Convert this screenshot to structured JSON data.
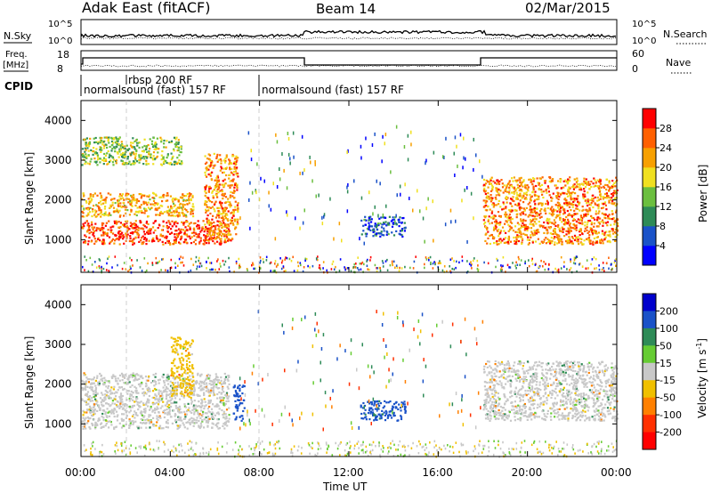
{
  "header": {
    "station": "Adak East (fitACF)",
    "beam": "Beam 14",
    "date": "02/Mar/2015"
  },
  "top_panels": {
    "nsky_label": "N.Sky",
    "nsearch_label": "N.Search",
    "nsky_ticks": [
      "10^5",
      "10^0"
    ],
    "nsearch_ticks": [
      "10^5",
      "10^0"
    ],
    "freq_label": "Freq.",
    "freq_unit": "[MHz]",
    "freq_ticks": [
      "18",
      "8"
    ],
    "nave_label": "Nave",
    "nave_ticks": [
      "60",
      "0"
    ],
    "cpid_label": "CPID",
    "cpid_entries": [
      {
        "text": "rbsp 200 RF",
        "start_hour": 2.0
      },
      {
        "text": "normalsound (fast) 157 RF",
        "start_hour": 0.0
      },
      {
        "text": "normalsound (fast) 157 RF",
        "start_hour": 8.0
      }
    ]
  },
  "axes": {
    "ylabel": "Slant Range [km]",
    "xlabel": "Time UT",
    "yticks": [
      "1000",
      "2000",
      "3000",
      "4000"
    ],
    "xticks": [
      "00:00",
      "04:00",
      "08:00",
      "12:00",
      "16:00",
      "20:00",
      "00:00"
    ]
  },
  "colorbars": {
    "power": {
      "label": "Power [dB]",
      "ticks": [
        "4",
        "8",
        "12",
        "16",
        "20",
        "24",
        "28"
      ],
      "colors": [
        "#0000ff",
        "#1a52c8",
        "#2e8b57",
        "#6bbf3f",
        "#f0e020",
        "#f7a000",
        "#ff6000",
        "#ff0000"
      ]
    },
    "velocity": {
      "label": "Velocity [m s",
      "label_sup": "-1",
      "label_end": "]",
      "ticks": [
        "200",
        "100",
        "50",
        "15",
        "-15",
        "-50",
        "-100",
        "-200"
      ],
      "colors": [
        "#0000cc",
        "#1a52c8",
        "#2e8b57",
        "#66cc33",
        "#c8c8c8",
        "#f0c000",
        "#ff8000",
        "#ff3000",
        "#ff0000"
      ]
    }
  },
  "chart_data": [
    {
      "type": "heatmap",
      "title": "Adak East (fitACF) Beam 14 02/Mar/2015 - Power",
      "xlabel": "Time UT",
      "ylabel": "Slant Range [km]",
      "xlim_hours": [
        0,
        24
      ],
      "ylim": [
        180,
        4500
      ],
      "colorbar": "Power [dB]",
      "colorbar_range": [
        0,
        30
      ],
      "regions": [
        {
          "t": [
            0.0,
            6.6
          ],
          "range_km": [
            900,
            1500
          ],
          "power_dB": 26
        },
        {
          "t": [
            0.0,
            5.0
          ],
          "range_km": [
            1600,
            2200
          ],
          "power_dB": 20
        },
        {
          "t": [
            5.5,
            7.0
          ],
          "range_km": [
            1000,
            3200
          ],
          "power_dB": 22
        },
        {
          "t": [
            0.0,
            4.5
          ],
          "range_km": [
            2900,
            3600
          ],
          "power_dB": 14
        },
        {
          "t": [
            12.5,
            14.5
          ],
          "range_km": [
            1100,
            1600
          ],
          "power_dB": 6
        },
        {
          "t": [
            18.0,
            24.0
          ],
          "range_km": [
            900,
            2600
          ],
          "power_dB": 22
        }
      ]
    },
    {
      "type": "heatmap",
      "title": "Adak East (fitACF) Beam 14 02/Mar/2015 - Velocity",
      "xlabel": "Time UT",
      "ylabel": "Slant Range [km]",
      "xlim_hours": [
        0,
        24
      ],
      "ylim": [
        180,
        4500
      ],
      "colorbar": "Velocity [m s-1]",
      "colorbar_range": [
        -200,
        200
      ],
      "regions": [
        {
          "t": [
            0.0,
            6.6
          ],
          "range_km": [
            900,
            2300
          ],
          "velocity": 0
        },
        {
          "t": [
            4.0,
            5.0
          ],
          "range_km": [
            1700,
            3200
          ],
          "velocity": -40
        },
        {
          "t": [
            6.8,
            7.3
          ],
          "range_km": [
            1100,
            2000
          ],
          "velocity": 180
        },
        {
          "t": [
            18.0,
            24.0
          ],
          "range_km": [
            1100,
            2600
          ],
          "velocity": 0
        },
        {
          "t": [
            12.5,
            14.5
          ],
          "range_km": [
            1100,
            1600
          ],
          "velocity": 120
        }
      ]
    }
  ]
}
